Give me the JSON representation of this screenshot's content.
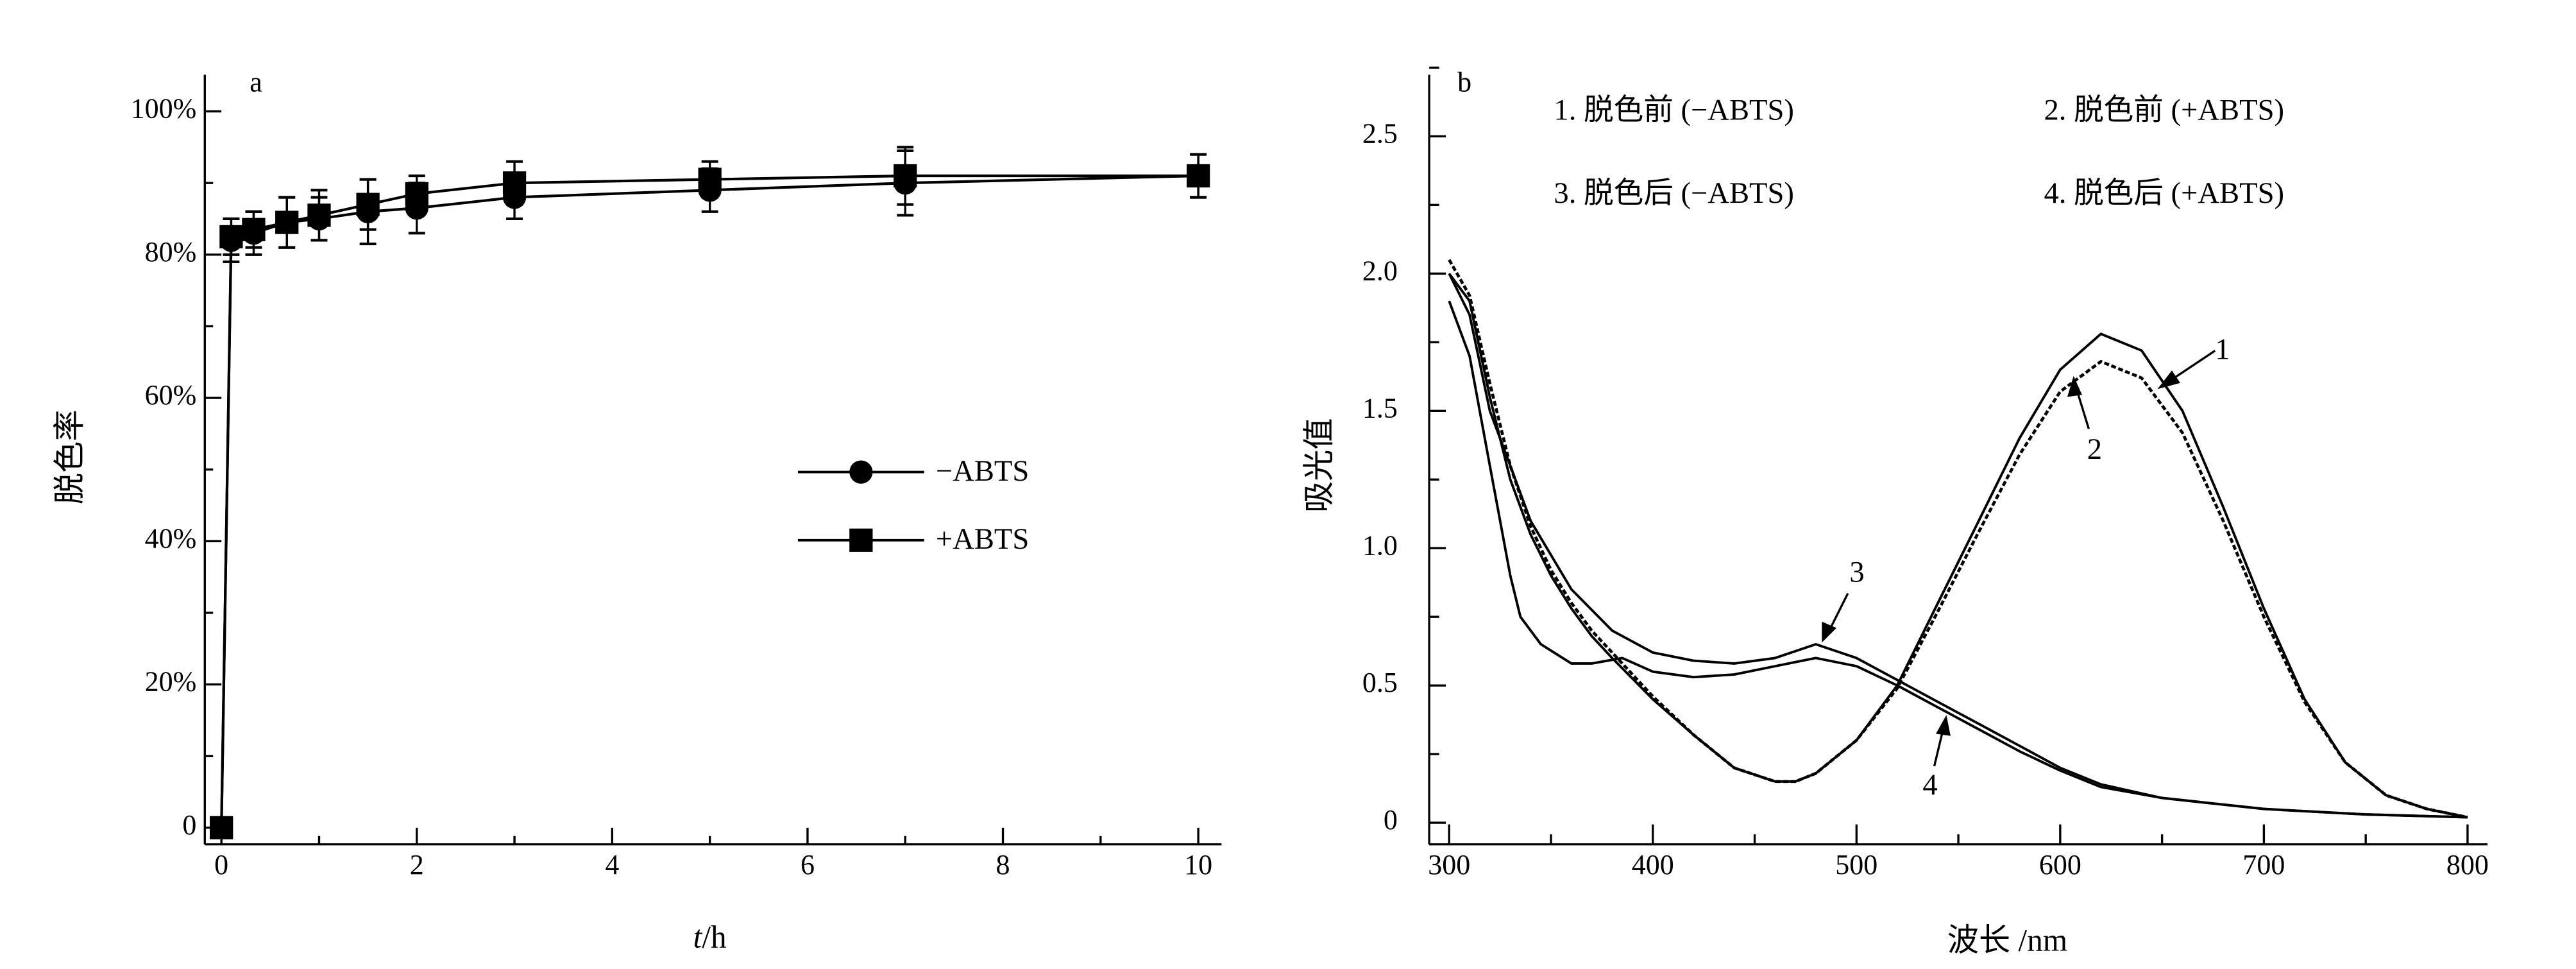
{
  "chart_data": [
    {
      "type": "line",
      "panel_label": "a",
      "xlabel_italic": "t",
      "xlabel_unit": "/h",
      "ylabel": "脱色率",
      "xlim": [
        0,
        10
      ],
      "ylim": [
        0,
        100
      ],
      "xticks": [
        "0",
        "2",
        "4",
        "6",
        "8",
        "10"
      ],
      "yticks": [
        "0",
        "20%",
        "40%",
        "60%",
        "80%",
        "100%"
      ],
      "grid": false,
      "legend_placement": "center-right",
      "x": [
        0,
        0.1,
        0.33,
        0.67,
        1,
        1.5,
        2,
        3,
        5,
        7,
        10
      ],
      "series": [
        {
          "name": "−ABTS",
          "marker": "circle",
          "values": [
            0,
            82,
            83,
            84.5,
            85,
            86,
            86.5,
            88,
            89,
            90,
            91
          ],
          "errors": [
            0,
            3,
            3,
            3.5,
            3,
            4.5,
            3.5,
            3,
            3,
            4.5,
            3
          ]
        },
        {
          "name": "+ABTS",
          "marker": "square",
          "values": [
            0,
            82.5,
            83.5,
            84.5,
            85.5,
            87,
            88.5,
            90,
            90.5,
            91,
            91
          ],
          "errors": [
            0,
            2.5,
            2.5,
            3.5,
            3.5,
            3.5,
            2.5,
            3,
            2.5,
            4,
            3
          ]
        }
      ]
    },
    {
      "type": "line",
      "panel_label": "b",
      "xlabel": "波长 /nm",
      "ylabel": "吸光值",
      "xlim": [
        290,
        810
      ],
      "ylim": [
        0,
        2.7
      ],
      "xticks": [
        "300",
        "400",
        "500",
        "600",
        "700",
        "800"
      ],
      "yticks": [
        "0",
        "0.5",
        "1.0",
        "1.5",
        "2.0",
        "2.5"
      ],
      "grid": false,
      "legend_placement": "top",
      "series": [
        {
          "name": "1. 脱色前 (−ABTS)",
          "label": "1",
          "style": "solid",
          "x": [
            300,
            310,
            320,
            330,
            340,
            350,
            360,
            370,
            380,
            400,
            420,
            440,
            460,
            470,
            480,
            500,
            520,
            540,
            560,
            580,
            600,
            620,
            640,
            660,
            680,
            700,
            720,
            740,
            760,
            780,
            800
          ],
          "values": [
            2.0,
            1.9,
            1.55,
            1.25,
            1.05,
            0.9,
            0.78,
            0.68,
            0.6,
            0.45,
            0.32,
            0.2,
            0.15,
            0.15,
            0.18,
            0.3,
            0.5,
            0.8,
            1.1,
            1.4,
            1.65,
            1.78,
            1.72,
            1.5,
            1.15,
            0.78,
            0.45,
            0.22,
            0.1,
            0.05,
            0.02
          ]
        },
        {
          "name": "2. 脱色前 (+ABTS)",
          "label": "2",
          "style": "dotted",
          "x": [
            300,
            310,
            320,
            330,
            340,
            350,
            360,
            370,
            380,
            400,
            420,
            440,
            460,
            470,
            480,
            500,
            520,
            540,
            560,
            580,
            600,
            620,
            640,
            660,
            680,
            700,
            720,
            740,
            760,
            780,
            800
          ],
          "values": [
            2.05,
            1.92,
            1.6,
            1.3,
            1.08,
            0.92,
            0.8,
            0.7,
            0.62,
            0.46,
            0.32,
            0.2,
            0.15,
            0.15,
            0.18,
            0.3,
            0.49,
            0.77,
            1.06,
            1.34,
            1.57,
            1.68,
            1.62,
            1.42,
            1.1,
            0.75,
            0.44,
            0.22,
            0.1,
            0.05,
            0.02
          ]
        },
        {
          "name": "3. 脱色后 (−ABTS)",
          "label": "3",
          "style": "solid",
          "x": [
            300,
            310,
            320,
            330,
            340,
            360,
            380,
            400,
            420,
            440,
            460,
            480,
            500,
            520,
            540,
            560,
            580,
            600,
            620,
            650,
            700,
            750,
            800
          ],
          "values": [
            2.0,
            1.85,
            1.5,
            1.3,
            1.1,
            0.85,
            0.7,
            0.62,
            0.59,
            0.58,
            0.6,
            0.65,
            0.6,
            0.52,
            0.44,
            0.36,
            0.28,
            0.2,
            0.14,
            0.09,
            0.05,
            0.03,
            0.02
          ]
        },
        {
          "name": "4. 脱色后 (+ABTS)",
          "label": "4",
          "style": "solid",
          "x": [
            300,
            310,
            320,
            330,
            335,
            345,
            360,
            370,
            385,
            400,
            420,
            440,
            460,
            480,
            500,
            520,
            540,
            560,
            580,
            600,
            620,
            650,
            700,
            750,
            800
          ],
          "values": [
            1.9,
            1.7,
            1.3,
            0.9,
            0.75,
            0.65,
            0.58,
            0.58,
            0.6,
            0.55,
            0.53,
            0.54,
            0.57,
            0.6,
            0.57,
            0.5,
            0.42,
            0.34,
            0.26,
            0.19,
            0.13,
            0.09,
            0.05,
            0.03,
            0.02
          ]
        }
      ]
    }
  ]
}
